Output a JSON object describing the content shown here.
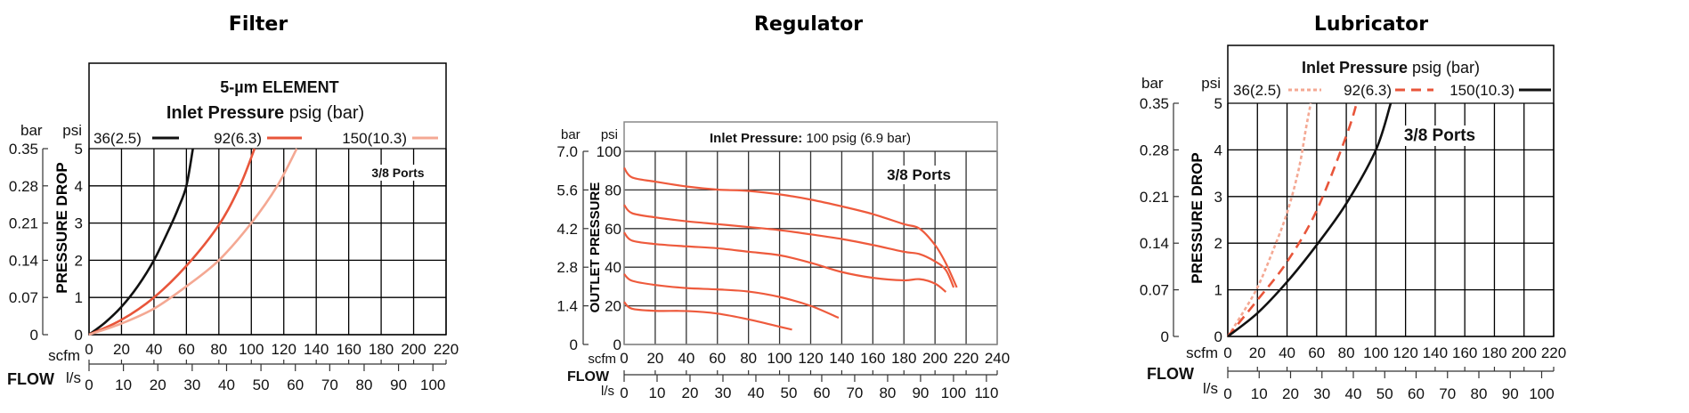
{
  "chart_data": [
    {
      "type": "line",
      "title": "Filter",
      "subtitle": "5-µm ELEMENT",
      "legend_title_bold": "Inlet Pressure",
      "legend_title_rest": "psig (bar)",
      "annotation": "3/8 Ports",
      "ylabel": "PRESSURE DROP",
      "y_unit": "psi",
      "y2_unit": "bar",
      "xlabel": "FLOW",
      "x_unit": "scfm",
      "x2_unit": "l/s",
      "xlim": [
        0,
        220
      ],
      "ylim": [
        0,
        5
      ],
      "x_ticks": [
        "0",
        "20",
        "40",
        "60",
        "80",
        "100",
        "120",
        "140",
        "160",
        "180",
        "200",
        "220"
      ],
      "x2_ticks": [
        "0",
        "10",
        "20",
        "30",
        "40",
        "50",
        "60",
        "70",
        "80",
        "90",
        "100"
      ],
      "y_ticks": [
        "0",
        "1",
        "2",
        "3",
        "4",
        "5"
      ],
      "y2_ticks": [
        "0",
        "0.07",
        "0.14",
        "0.21",
        "0.28",
        "0.35"
      ],
      "grid": true,
      "legend_position": "top",
      "series": [
        {
          "name": "36(2.5)",
          "color": "#111111",
          "style": "solid",
          "points": [
            [
              0,
              0
            ],
            [
              10,
              0.33
            ],
            [
              20,
              0.75
            ],
            [
              30,
              1.3
            ],
            [
              40,
              2.0
            ],
            [
              50,
              2.9
            ],
            [
              55,
              3.4
            ],
            [
              60,
              4.0
            ],
            [
              64,
              5.0
            ]
          ]
        },
        {
          "name": "92(6.3)",
          "color": "#e8553a",
          "style": "solid",
          "points": [
            [
              0,
              0
            ],
            [
              20,
              0.4
            ],
            [
              40,
              1.0
            ],
            [
              60,
              1.85
            ],
            [
              80,
              2.95
            ],
            [
              93,
              4.0
            ],
            [
              102,
              5.0
            ]
          ]
        },
        {
          "name": "150(10.3)",
          "color": "#f4a893",
          "style": "solid",
          "points": [
            [
              0,
              0
            ],
            [
              20,
              0.3
            ],
            [
              40,
              0.7
            ],
            [
              60,
              1.3
            ],
            [
              80,
              2.0
            ],
            [
              100,
              3.0
            ],
            [
              116,
              4.0
            ],
            [
              128,
              5.0
            ]
          ]
        }
      ]
    },
    {
      "type": "line",
      "title": "Regulator",
      "legend_title_bold": "Inlet Pressure:",
      "legend_title_rest": "100 psig (6.9 bar)",
      "annotation": "3/8 Ports",
      "ylabel": "OUTLET PRESSURE",
      "y_unit": "psi",
      "y2_unit": "bar",
      "xlabel": "FLOW",
      "x_unit": "scfm",
      "x2_unit": "l/s",
      "xlim": [
        0,
        240
      ],
      "ylim": [
        0,
        100
      ],
      "x_ticks": [
        "0",
        "20",
        "40",
        "60",
        "80",
        "100",
        "120",
        "140",
        "160",
        "180",
        "200",
        "220",
        "240"
      ],
      "x2_ticks": [
        "0",
        "10",
        "20",
        "30",
        "40",
        "50",
        "60",
        "70",
        "80",
        "90",
        "100",
        "110"
      ],
      "y_ticks": [
        "0",
        "20",
        "40",
        "60",
        "80",
        "100"
      ],
      "y2_ticks": [
        "0",
        "1.4",
        "2.8",
        "4.2",
        "5.6",
        "7.0"
      ],
      "grid": true,
      "series": [
        {
          "color": "#ee5a3c",
          "style": "solid",
          "points": [
            [
              0,
              91.5
            ],
            [
              5,
              86.5
            ],
            [
              20,
              84.3
            ],
            [
              40,
              81.8
            ],
            [
              60,
              80.2
            ],
            [
              80,
              79.5
            ],
            [
              100,
              77.7
            ],
            [
              120,
              75
            ],
            [
              140,
              71.5
            ],
            [
              160,
              67.5
            ],
            [
              180,
              62.3
            ],
            [
              190,
              60
            ],
            [
              200,
              51.5
            ],
            [
              207,
              42
            ],
            [
              214,
              29.5
            ]
          ]
        },
        {
          "color": "#ee5a3c",
          "style": "solid",
          "points": [
            [
              0,
              72.3
            ],
            [
              5,
              68
            ],
            [
              20,
              65.8
            ],
            [
              40,
              63.8
            ],
            [
              60,
              62.3
            ],
            [
              80,
              60.8
            ],
            [
              100,
              59.2
            ],
            [
              120,
              57
            ],
            [
              140,
              54.6
            ],
            [
              160,
              51.5
            ],
            [
              180,
              48
            ],
            [
              190,
              46.8
            ],
            [
              200,
              43
            ],
            [
              207,
              38.5
            ],
            [
              212,
              29.5
            ]
          ]
        },
        {
          "color": "#ee5a3c",
          "style": "solid",
          "points": [
            [
              0,
              58
            ],
            [
              5,
              53.8
            ],
            [
              20,
              52
            ],
            [
              40,
              50.8
            ],
            [
              60,
              49.8
            ],
            [
              80,
              48
            ],
            [
              100,
              46.2
            ],
            [
              120,
              42.3
            ],
            [
              140,
              37.5
            ],
            [
              160,
              34.5
            ],
            [
              180,
              33.2
            ],
            [
              190,
              33.8
            ],
            [
              200,
              31.5
            ],
            [
              207,
              27.2
            ]
          ]
        },
        {
          "color": "#ee5a3c",
          "style": "solid",
          "points": [
            [
              0,
              36.5
            ],
            [
              5,
              33
            ],
            [
              20,
              30.8
            ],
            [
              40,
              29.2
            ],
            [
              60,
              28.5
            ],
            [
              80,
              27.4
            ],
            [
              100,
              24.6
            ],
            [
              120,
              20
            ],
            [
              138,
              13.8
            ]
          ]
        },
        {
          "color": "#ee5a3c",
          "style": "solid",
          "points": [
            [
              0,
              22
            ],
            [
              5,
              18.5
            ],
            [
              20,
              17.4
            ],
            [
              40,
              17.3
            ],
            [
              60,
              16
            ],
            [
              80,
              13
            ],
            [
              100,
              9.2
            ],
            [
              108,
              7.7
            ]
          ]
        }
      ]
    },
    {
      "type": "line",
      "title": "Lubricator",
      "legend_title_bold": "Inlet Pressure",
      "legend_title_rest": "psig (bar)",
      "annotation": "3/8 Ports",
      "ylabel": "PRESSURE DROP",
      "y_unit": "psi",
      "y2_unit": "bar",
      "xlabel": "FLOW",
      "x_unit": "scfm",
      "x2_unit": "l/s",
      "xlim": [
        0,
        220
      ],
      "ylim": [
        0,
        5
      ],
      "x_ticks": [
        "0",
        "20",
        "40",
        "60",
        "80",
        "100",
        "120",
        "140",
        "160",
        "180",
        "200",
        "220"
      ],
      "x2_ticks": [
        "0",
        "10",
        "20",
        "30",
        "40",
        "50",
        "60",
        "70",
        "80",
        "90",
        "100"
      ],
      "y_ticks": [
        "0",
        "1",
        "2",
        "3",
        "4",
        "5"
      ],
      "y2_ticks": [
        "0",
        "0.07",
        "0.14",
        "0.21",
        "0.28",
        "0.35"
      ],
      "grid": true,
      "legend_position": "top",
      "series": [
        {
          "name": "36(2.5)",
          "color": "#f4a893",
          "style": "dotted",
          "points": [
            [
              0,
              0
            ],
            [
              10,
              0.5
            ],
            [
              20,
              1.05
            ],
            [
              30,
              1.8
            ],
            [
              40,
              2.65
            ],
            [
              48,
              3.6
            ],
            [
              53,
              4.5
            ],
            [
              56,
              5.0
            ]
          ]
        },
        {
          "name": "92(6.3)",
          "color": "#e8553a",
          "style": "dashed",
          "points": [
            [
              0,
              0
            ],
            [
              20,
              0.78
            ],
            [
              40,
              1.6
            ],
            [
              60,
              2.7
            ],
            [
              80,
              4.3
            ],
            [
              87,
              5.0
            ]
          ]
        },
        {
          "name": "150(10.3)",
          "color": "#111111",
          "style": "solid",
          "points": [
            [
              0,
              0
            ],
            [
              20,
              0.5
            ],
            [
              40,
              1.17
            ],
            [
              60,
              1.96
            ],
            [
              80,
              2.85
            ],
            [
              100,
              4.0
            ],
            [
              110,
              5.0
            ]
          ]
        }
      ]
    }
  ]
}
